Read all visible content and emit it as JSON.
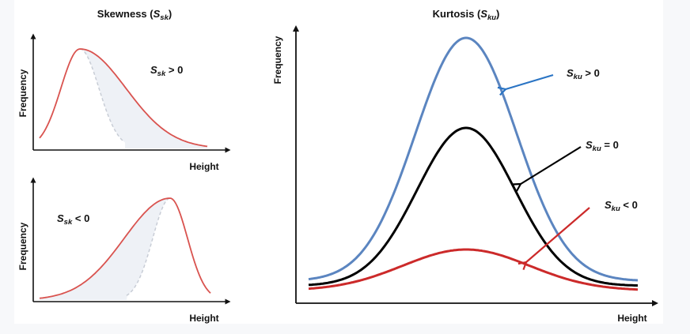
{
  "figure": {
    "skewness_panel": {
      "title": {
        "prefix": "Skewness (",
        "symbol": "S",
        "sub": "sk",
        "suffix": ")"
      },
      "top_plot": {
        "y_label": "Frequency",
        "x_label": "Height",
        "annotation": {
          "symbol": "S",
          "sub": "sk",
          "relation": " > 0"
        }
      },
      "bottom_plot": {
        "y_label": "Frequency",
        "x_label": "Height",
        "annotation": {
          "symbol": "S",
          "sub": "sk",
          "relation": " < 0"
        }
      }
    },
    "kurtosis_panel": {
      "title": {
        "prefix": "Kurtosis (",
        "symbol": "S",
        "sub": "ku",
        "suffix": ")"
      },
      "y_label": "Frequency",
      "x_label": "Height",
      "annotations": [
        {
          "symbol": "S",
          "sub": "ku",
          "relation": " > 0"
        },
        {
          "symbol": "S",
          "sub": "ku",
          "relation": " = 0"
        },
        {
          "symbol": "S",
          "sub": "ku",
          "relation": " < 0"
        }
      ]
    },
    "colors": {
      "skew_curve": "#d9534f",
      "normal_dashed": "#c8cdd6",
      "shade": "#eef1f6",
      "leptokurtic": "#5b85c0",
      "mesokurtic": "#000000",
      "platykurtic": "#cc2a2a",
      "arrow_blue": "#2a74c4",
      "arrow_black": "#000000",
      "arrow_red": "#cc2a2a"
    }
  }
}
